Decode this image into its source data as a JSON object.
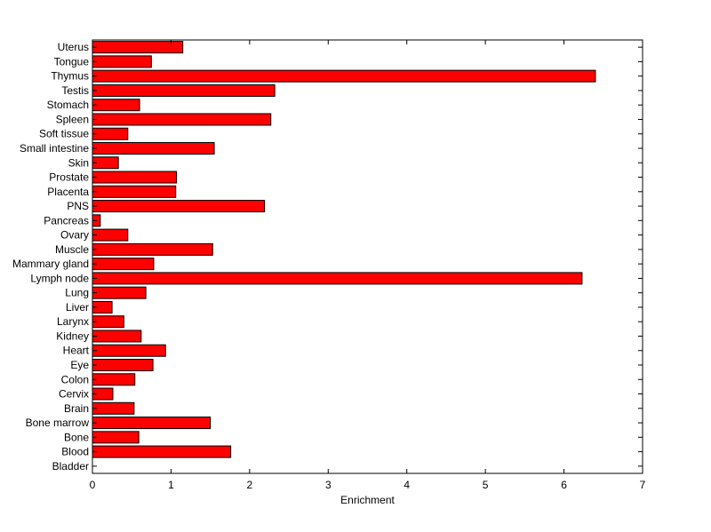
{
  "chart_data": {
    "type": "bar",
    "orientation": "horizontal",
    "categories": [
      "Uterus",
      "Tongue",
      "Thymus",
      "Testis",
      "Stomach",
      "Spleen",
      "Soft tissue",
      "Small intestine",
      "Skin",
      "Prostate",
      "Placenta",
      "PNS",
      "Pancreas",
      "Ovary",
      "Muscle",
      "Mammary gland",
      "Lymph node",
      "Lung",
      "Liver",
      "Larynx",
      "Kidney",
      "Heart",
      "Eye",
      "Colon",
      "Cervix",
      "Brain",
      "Bone marrow",
      "Bone",
      "Blood",
      "Bladder"
    ],
    "values": [
      1.15,
      0.75,
      6.4,
      2.32,
      0.6,
      2.27,
      0.45,
      1.55,
      0.33,
      1.07,
      1.06,
      2.19,
      0.1,
      0.45,
      1.53,
      0.78,
      6.23,
      0.68,
      0.25,
      0.4,
      0.62,
      0.93,
      0.77,
      0.54,
      0.26,
      0.53,
      1.5,
      0.59,
      1.76,
      0
    ],
    "xlabel": "Enrichment",
    "ylabel": "",
    "xlim": [
      0,
      7
    ],
    "xticks": [
      0,
      1,
      2,
      3,
      4,
      5,
      6,
      7
    ],
    "grid": false,
    "colors": {
      "bar_fill": "#ff0000",
      "bar_stroke": "#000000",
      "axis": "#000000"
    }
  }
}
